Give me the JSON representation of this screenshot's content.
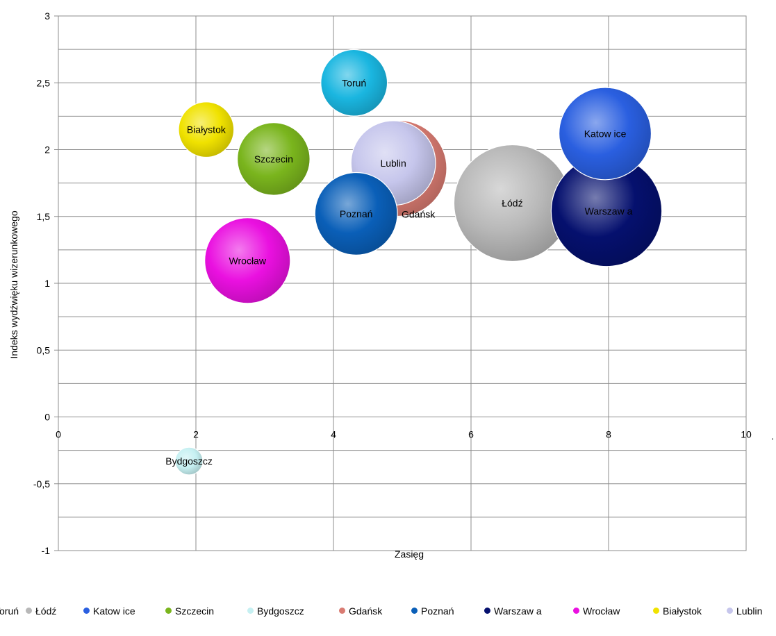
{
  "chart_data": {
    "type": "bubble",
    "title": "",
    "xlabel": "Zasięg",
    "ylabel": "Indeks wydźwięku wizerunkowego",
    "xlim": [
      0,
      10
    ],
    "ylim": [
      -1,
      3
    ],
    "x_ticks": [
      "0",
      "2",
      "4",
      "6",
      "8",
      "10"
    ],
    "y_ticks": [
      "-1",
      "-0,5",
      "0",
      "0,5",
      "1",
      "1,5",
      "2",
      "2,5",
      "3"
    ],
    "grid": true,
    "legend_position": "bottom",
    "series": [
      {
        "name": "Toruń",
        "label": "Toruń",
        "x": 4.3,
        "y": 2.5,
        "size": 2.6,
        "color": "#1ab6e0"
      },
      {
        "name": "Łódź",
        "label": "Łódź",
        "x": 6.6,
        "y": 1.6,
        "size": 8.0,
        "color": "#b8b8b8"
      },
      {
        "name": "Katow ice",
        "label": "Katow ice",
        "x": 7.95,
        "y": 2.12,
        "size": 5.0,
        "color": "#2a5fe0"
      },
      {
        "name": "Szczecin",
        "label": "Szczecin",
        "x": 3.13,
        "y": 1.93,
        "size": 3.1,
        "color": "#7ab51d"
      },
      {
        "name": "Bydgoszcz",
        "label": "Bydgoszcz",
        "x": 1.9,
        "y": -0.33,
        "size": 0.45,
        "color": "#c6f0f2"
      },
      {
        "name": "Gdańsk",
        "label": "Gdańsk",
        "x": 4.95,
        "y": 1.86,
        "size": 5.4,
        "color": "#d97b72"
      },
      {
        "name": "Poznań",
        "label": "Poznań",
        "x": 4.33,
        "y": 1.52,
        "size": 4.0,
        "color": "#0a5fb8"
      },
      {
        "name": "Warszaw a",
        "label": "Warszaw a",
        "x": 7.97,
        "y": 1.54,
        "size": 7.2,
        "color": "#05106e"
      },
      {
        "name": "Wrocław",
        "label": "Wrocław",
        "x": 2.75,
        "y": 1.17,
        "size": 4.3,
        "color": "#ea10e0"
      },
      {
        "name": "Białystok",
        "label": "Białystok",
        "x": 2.15,
        "y": 2.15,
        "size": 1.8,
        "color": "#f0e200"
      },
      {
        "name": "Lublin",
        "label": "Lublin",
        "x": 4.87,
        "y": 1.9,
        "size": 4.2,
        "color": "#c6c6ec"
      }
    ],
    "legend_order": [
      "Toruń",
      "Łódź",
      "Katow ice",
      "Szczecin",
      "Bydgoszcz",
      "Gdańsk",
      "Poznań",
      "Warszaw a",
      "Wrocław",
      "Białystok",
      "Lublin"
    ],
    "trailing_mark": "."
  }
}
